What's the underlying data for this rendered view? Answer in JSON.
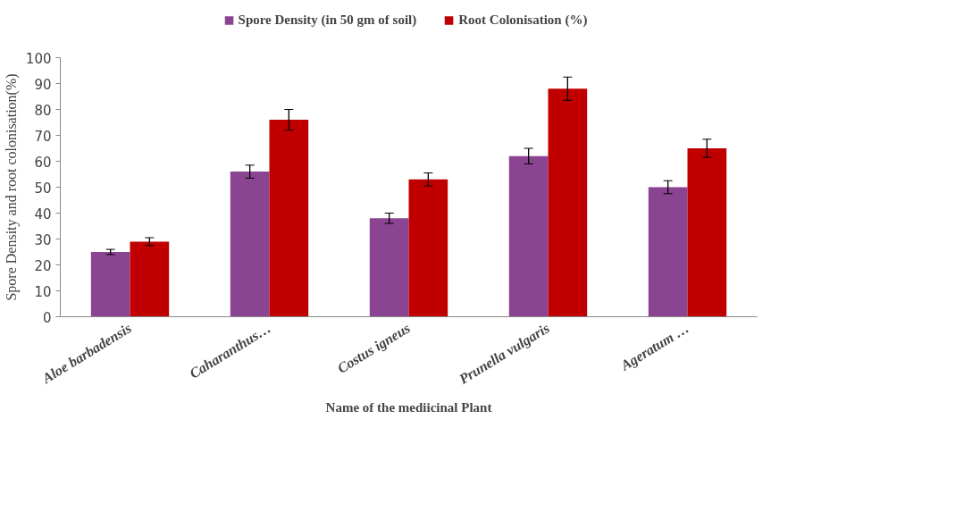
{
  "chart_data": {
    "type": "bar",
    "xlabel": "Name of the mediicinal Plant",
    "ylabel": "Spore Density and root colonisation(%)",
    "categories": [
      "Aloe barbadensis",
      "Caharanthus…",
      "Costus igneus",
      "Prunella vulgaris",
      "Ageratum …"
    ],
    "series": [
      {
        "name": "Spore Density (in 50 gm of soil)",
        "color": "#8b4491",
        "values": [
          25,
          56,
          38,
          62,
          50
        ],
        "errors": [
          1,
          2.5,
          2,
          3,
          2.5
        ]
      },
      {
        "name": "Root Colonisation (%)",
        "color": "#c00000",
        "values": [
          29,
          76,
          53,
          88,
          65
        ],
        "errors": [
          1.5,
          4,
          2.5,
          4.5,
          3.5
        ]
      }
    ],
    "ylim": [
      0,
      100
    ],
    "yticks": [
      0,
      10,
      20,
      30,
      40,
      50,
      60,
      70,
      80,
      90,
      100
    ],
    "grid": false,
    "legend": "top"
  }
}
